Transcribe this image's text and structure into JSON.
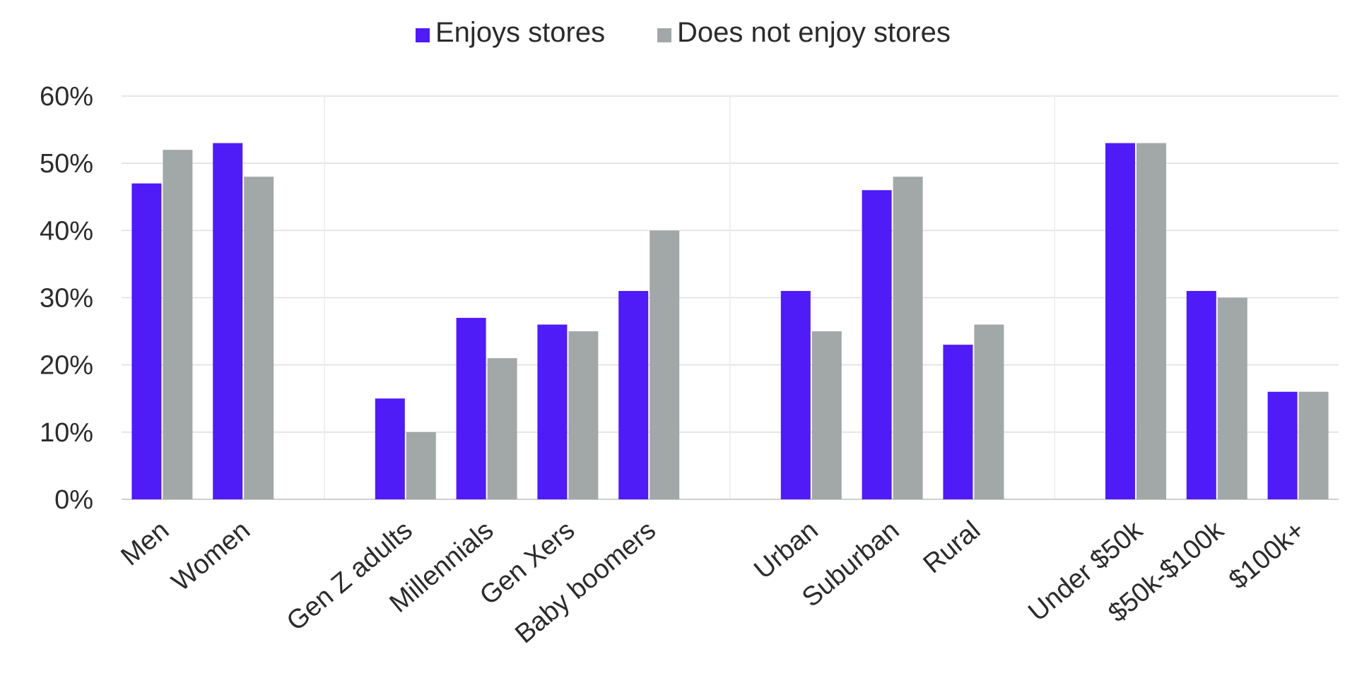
{
  "chart_data": {
    "type": "bar",
    "categories": [
      "Men",
      "Women",
      "",
      "Gen Z adults",
      "Millennials",
      "Gen Xers",
      "Baby boomers",
      "",
      "Urban",
      "Suburban",
      "Rural",
      "",
      "Under $50k",
      "$50k-$100k",
      "$100k+"
    ],
    "series": [
      {
        "name": "Enjoys stores",
        "color": "#4f1bf7",
        "values": [
          47,
          53,
          null,
          15,
          27,
          26,
          31,
          null,
          31,
          46,
          23,
          null,
          53,
          31,
          16
        ]
      },
      {
        "name": "Does not enjoy stores",
        "color": "#a2a8a7",
        "values": [
          52,
          48,
          null,
          10,
          21,
          25,
          40,
          null,
          25,
          48,
          26,
          null,
          53,
          30,
          16
        ]
      }
    ],
    "groups": [
      {
        "categories": [
          "Men",
          "Women"
        ]
      },
      {
        "categories": [
          "Gen Z adults",
          "Millennials",
          "Gen Xers",
          "Baby boomers"
        ]
      },
      {
        "categories": [
          "Urban",
          "Suburban",
          "Rural"
        ]
      },
      {
        "categories": [
          "Under $50k",
          "$50k-$100k",
          "$100k+"
        ]
      }
    ],
    "ylim": [
      0,
      60
    ],
    "yticks": [
      "0%",
      "10%",
      "20%",
      "30%",
      "40%",
      "50%",
      "60%"
    ],
    "grid": true,
    "legend_position": "top-center",
    "xlabel": "",
    "ylabel": ""
  }
}
